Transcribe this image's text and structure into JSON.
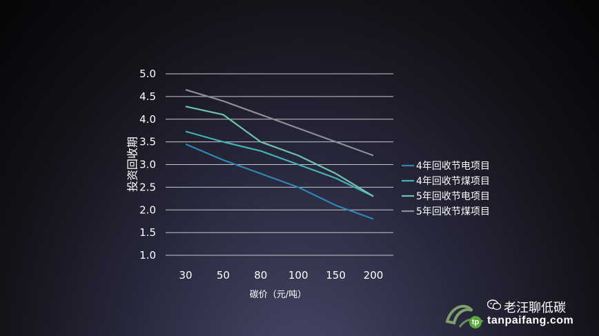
{
  "chart_data": {
    "type": "line",
    "ylabel": "投资回收期",
    "xlabel": "碳价（元/吨）",
    "categories": [
      "30",
      "50",
      "80",
      "100",
      "150",
      "200"
    ],
    "ylim": [
      1.0,
      5.0
    ],
    "yticks": [
      "1.0",
      "1.5",
      "2.0",
      "2.5",
      "3.0",
      "3.5",
      "4.0",
      "4.5",
      "5.0"
    ],
    "grid": true,
    "legend_position": "right",
    "series": [
      {
        "name": "4年回收节电项目",
        "color": "#2f86b5",
        "values": [
          3.45,
          3.1,
          2.8,
          2.5,
          2.1,
          1.8
        ]
      },
      {
        "name": "4年回收节煤项目",
        "color": "#45b3b8",
        "values": [
          3.73,
          3.5,
          3.3,
          3.0,
          2.7,
          2.3
        ]
      },
      {
        "name": "5年回收节电项目",
        "color": "#6ec4ae",
        "values": [
          4.28,
          4.1,
          3.5,
          3.2,
          2.8,
          2.3
        ]
      },
      {
        "name": "5年回收节煤项目",
        "color": "#8f8f99",
        "values": [
          4.65,
          4.4,
          4.1,
          3.8,
          3.5,
          3.2
        ]
      }
    ]
  },
  "watermark": {
    "name": "老汪聊低碳",
    "url": "tanpaifang.com",
    "logo_letter": "tp"
  }
}
